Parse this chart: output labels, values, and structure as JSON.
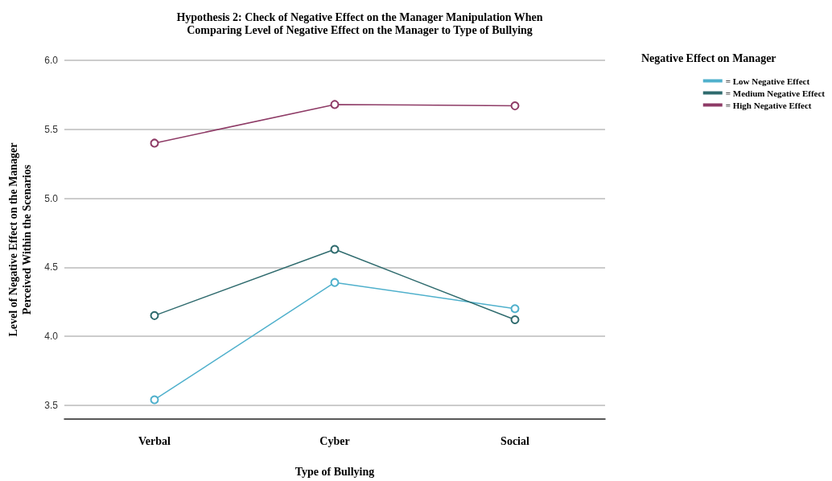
{
  "chart_data": {
    "type": "line",
    "title": "Hypothesis 2: Check of Negative Effect on the Manager Manipulation When\nComparing Level of Negative Effect on the Manager to Type of Bullying",
    "xlabel": "Type of Bullying",
    "ylabel": "Level of Negative Effect on the Manager\nPerceived Within the Scenarios",
    "legend_title": "Negative Effect on Manager",
    "categories": [
      "Verbal",
      "Cyber",
      "Social"
    ],
    "series": [
      {
        "name": "= Low Negative Effect",
        "color": "#4fb0cc",
        "values": [
          3.54,
          4.39,
          4.2
        ]
      },
      {
        "name": "= Medium Negative Effect",
        "color": "#2f6b6e",
        "values": [
          4.15,
          4.63,
          4.12
        ]
      },
      {
        "name": "= High Negative Effect",
        "color": "#8e3b66",
        "values": [
          5.4,
          5.68,
          5.67
        ]
      }
    ],
    "ylim": [
      3.4,
      6
    ],
    "yticks": [
      {
        "value": 3.5,
        "label": "3.5"
      },
      {
        "value": 4,
        "label": "4.0"
      },
      {
        "value": 4.5,
        "label": "4.5"
      },
      {
        "value": 5,
        "label": "5.0"
      },
      {
        "value": 5.5,
        "label": "5.5"
      },
      {
        "value": 6,
        "label": "6.0"
      }
    ],
    "grid": "y",
    "legend": "top right",
    "marker": "circle",
    "line_style": "solid"
  }
}
